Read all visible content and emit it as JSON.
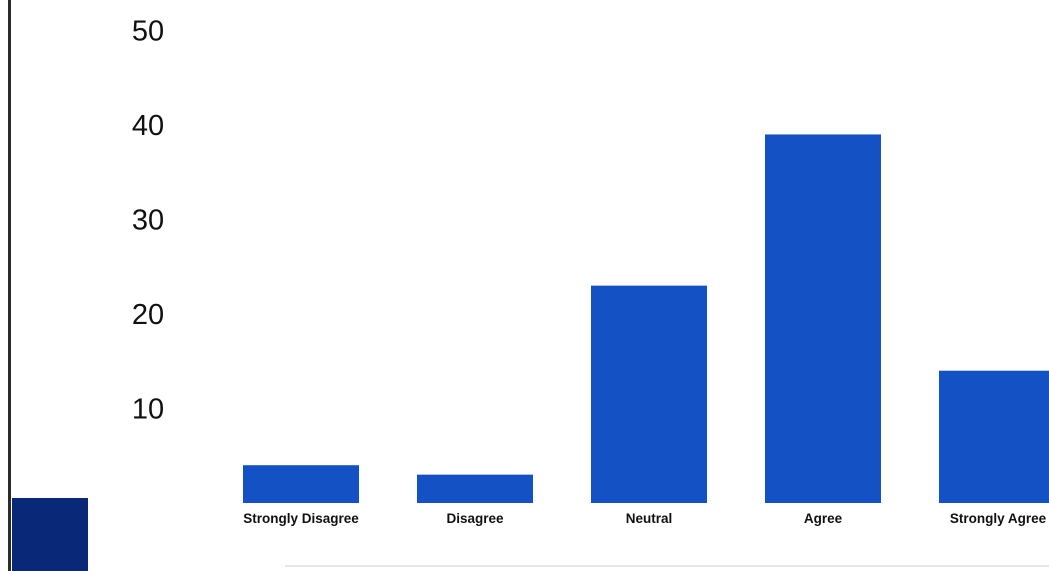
{
  "chart_data": {
    "type": "bar",
    "title": "",
    "xlabel": "",
    "ylabel": "",
    "categories": [
      "Strongly Disagree",
      "Disagree",
      "Neutral",
      "Agree",
      "Strongly Agree"
    ],
    "values": [
      4,
      3,
      23,
      39,
      14
    ],
    "ylim": [
      0,
      50
    ],
    "yticks": [
      10,
      20,
      30,
      40,
      50
    ],
    "grid": false,
    "legend": "none",
    "colors": {
      "bar": "#1451c4",
      "corner_block": "#0a2878",
      "text": "#111111"
    }
  }
}
